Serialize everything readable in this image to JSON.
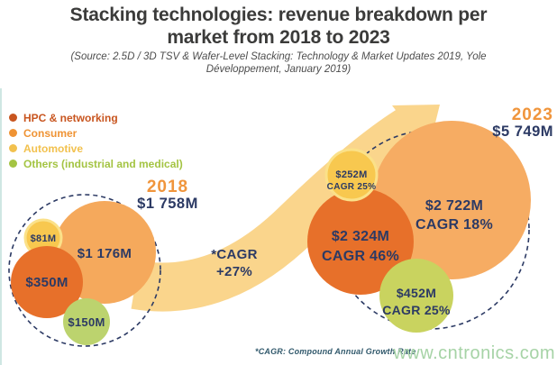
{
  "header": {
    "title": "Stacking technologies: revenue breakdown per market from 2018 to 2023",
    "subtitle": "(Source: 2.5D / 3D TSV & Wafer-Level Stacking: Technology & Market Updates 2019, Yole Développement, January 2019)"
  },
  "legend": {
    "items": [
      {
        "label": "HPC & networking",
        "color": "#c8551f"
      },
      {
        "label": "Consumer",
        "color": "#ef9334"
      },
      {
        "label": "Automotive",
        "color": "#f2c14e"
      },
      {
        "label": "Others (industrial and medical)",
        "color": "#a4c443"
      }
    ]
  },
  "chart_data": {
    "type": "bubble",
    "title": "Stacking technologies: revenue breakdown per market from 2018 to 2023",
    "unit": "USD millions",
    "arrow_label": "*CAGR +27%",
    "overall_cagr_pct": 27,
    "text_color": "#2c3a64",
    "year_color": "#f0953c",
    "clusters": [
      {
        "year": "2018",
        "total_label": "$1 758M",
        "total_value": 1758,
        "bubbles": [
          {
            "market": "Consumer",
            "label": "$1 176M",
            "value": 1176,
            "color": "#f5a95c"
          },
          {
            "market": "Automotive",
            "label": "$81M",
            "value": 81,
            "color": "#f8c84f"
          },
          {
            "market": "HPC & networking",
            "label": "$350M",
            "value": 350,
            "color": "#e7702a"
          },
          {
            "market": "Others (industrial and medical)",
            "label": "$150M",
            "value": 150,
            "color": "#bcd36e"
          }
        ]
      },
      {
        "year": "2023",
        "total_label": "$5 749M",
        "total_value": 5749,
        "bubbles": [
          {
            "market": "Consumer",
            "label": "$2 722M",
            "cagr": "CAGR 18%",
            "value": 2722,
            "color": "#f6ac63"
          },
          {
            "market": "HPC & networking",
            "label": "$2 324M",
            "cagr": "CAGR 46%",
            "value": 2324,
            "color": "#e7702a"
          },
          {
            "market": "Automotive",
            "label": "$252M",
            "cagr": "CAGR 25%",
            "value": 252,
            "color": "#f8c84f"
          },
          {
            "market": "Others (industrial and medical)",
            "label": "$452M",
            "cagr": "CAGR 25%",
            "value": 452,
            "color": "#c9d35f"
          }
        ]
      }
    ]
  },
  "footer": {
    "note": "*CAGR: Compound Annual Growth Rate",
    "watermark": "www.cntronics.com"
  }
}
